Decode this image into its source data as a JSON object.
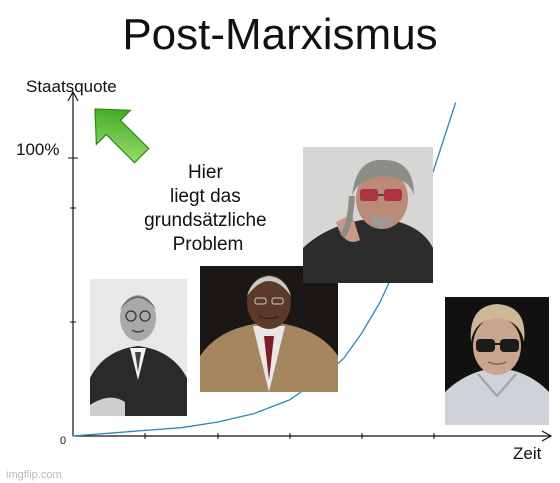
{
  "chart_data": {
    "type": "line",
    "title": "Post-Marxismus",
    "ylabel": "Staatsquote",
    "xlabel": "Zeit",
    "y_tick_label": "100%",
    "origin_label": "0",
    "ylim": [
      0,
      100
    ],
    "xlim": [
      0,
      100
    ],
    "grid": false,
    "series": [
      {
        "color": "#2b86b8",
        "x": [
          0,
          10,
          20,
          30,
          40,
          50,
          60,
          70,
          75,
          80,
          85,
          90,
          95,
          100,
          106
        ],
        "y": [
          0,
          1,
          2,
          3,
          5,
          8,
          13,
          22,
          28,
          37,
          48,
          62,
          78,
          96,
          120
        ]
      }
    ],
    "annotation": {
      "lines": [
        "Hier",
        "liegt das",
        "grundsätzliche",
        "Problem"
      ],
      "arrow_color": "#3db11f",
      "arrow_icon": "green-arrow-icon"
    },
    "photos": [
      {
        "name": "photo-man-bald-round-glasses",
        "icon": "portrait-icon"
      },
      {
        "name": "photo-man-gray-hair-suit",
        "icon": "portrait-icon"
      },
      {
        "name": "photo-man-long-hair-tinted-glasses",
        "icon": "portrait-icon"
      },
      {
        "name": "photo-young-man-sunglasses",
        "icon": "portrait-icon"
      }
    ]
  },
  "watermark": "imgflip.com"
}
